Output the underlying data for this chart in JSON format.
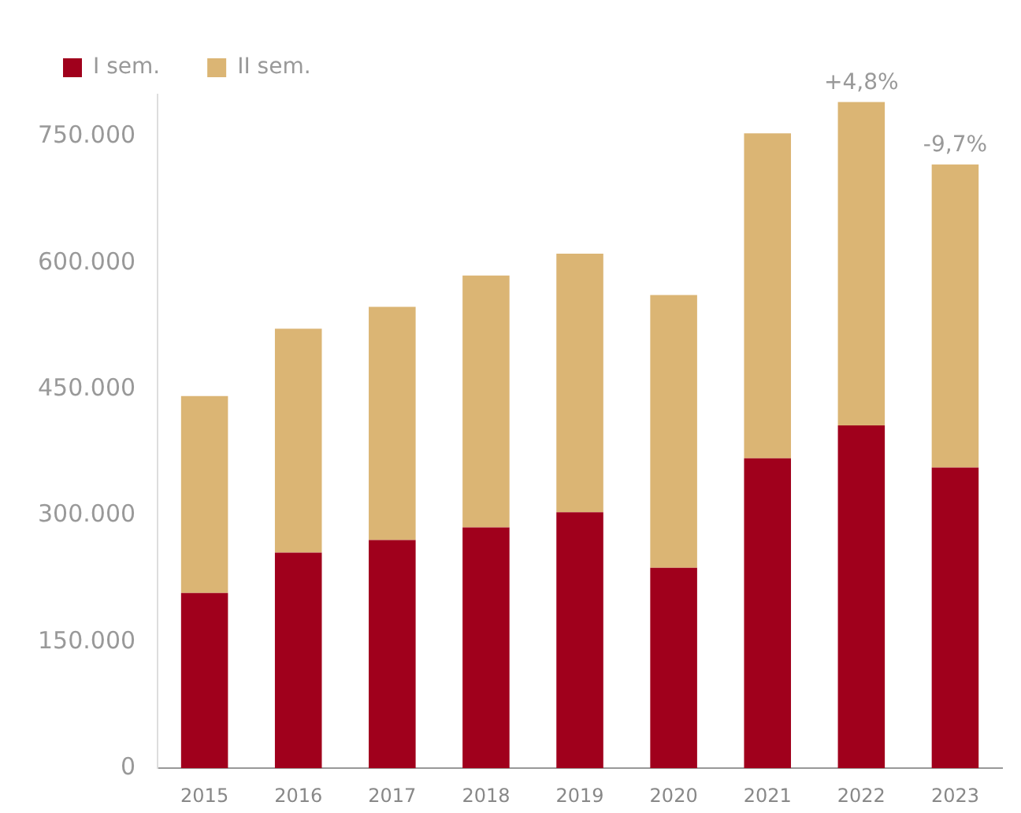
{
  "chart_data": {
    "type": "bar",
    "stacked": true,
    "categories": [
      "2015",
      "2016",
      "2017",
      "2018",
      "2019",
      "2020",
      "2021",
      "2022",
      "2023"
    ],
    "series": [
      {
        "name": "I sem.",
        "color": "#a0001c",
        "values": [
          208000,
          256000,
          271000,
          286000,
          304000,
          238000,
          368000,
          407000,
          357000
        ]
      },
      {
        "name": "II sem.",
        "color": "#dbb574",
        "values": [
          234000,
          266000,
          277000,
          299000,
          307000,
          324000,
          386000,
          384000,
          360000
        ]
      }
    ],
    "yticks": [
      {
        "value": 0,
        "label": "0"
      },
      {
        "value": 150000,
        "label": "150.000"
      },
      {
        "value": 300000,
        "label": "300.000"
      },
      {
        "value": 450000,
        "label": "450.000"
      },
      {
        "value": 600000,
        "label": "600.000"
      },
      {
        "value": 750000,
        "label": "750.000"
      }
    ],
    "ylim": [
      0,
      800000
    ],
    "grid": false,
    "legend": "top left",
    "annotations": [
      {
        "text": "+4,8%",
        "x": "2022",
        "y": 791000
      },
      {
        "text": "-9,7%",
        "x": "2023",
        "y": 717000
      }
    ]
  }
}
